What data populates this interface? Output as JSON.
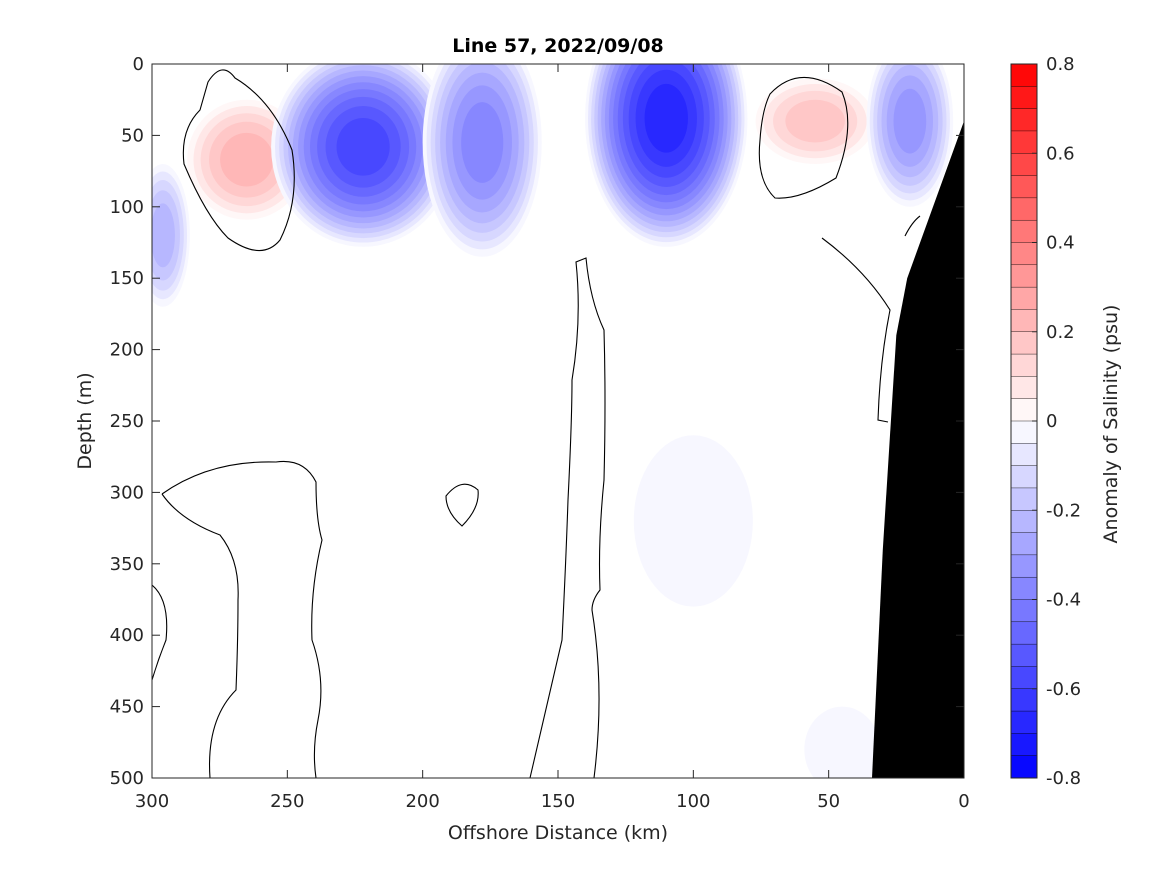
{
  "chart_data": {
    "type": "heatmap",
    "subtype": "filled-contour-section",
    "title": "Line 57, 2022/09/08",
    "xlabel": "Offshore Distance (km)",
    "ylabel": "Depth (m)",
    "colorbar_label": "Anomaly of Salinity (psu)",
    "xlim": [
      300,
      0
    ],
    "ylim": [
      500,
      0
    ],
    "x_reversed": true,
    "y_reversed": true,
    "x_ticks": [
      300,
      250,
      200,
      150,
      100,
      50,
      0
    ],
    "y_ticks": [
      0,
      50,
      100,
      150,
      200,
      250,
      300,
      350,
      400,
      450,
      500
    ],
    "colorbar_range": [
      -0.8,
      0.8
    ],
    "colorbar_step": 0.05,
    "colorbar_ticks": [
      0.8,
      0.6,
      0.4,
      0.2,
      0,
      -0.2,
      -0.4,
      -0.6,
      -0.8
    ],
    "colorbar_tick_labels": [
      "0.8",
      "0.6",
      "0.4",
      "0.2",
      "0",
      "-0.2",
      "-0.4",
      "-0.6",
      "-0.8"
    ],
    "colors": {
      "positive": "#ff0000",
      "negative": "#0000ff",
      "zero": "#ffffff",
      "bathymetry": "#000000"
    },
    "features": [
      {
        "sign": "positive",
        "x_center": 265,
        "depth_center": 67,
        "x_halfwidth": 22,
        "depth_halfwidth": 42,
        "peak": 0.25
      },
      {
        "sign": "positive",
        "x_center": 55,
        "depth_center": 40,
        "x_halfwidth": 22,
        "depth_halfwidth": 30,
        "peak": 0.2
      },
      {
        "sign": "negative",
        "x_center": 222,
        "depth_center": 58,
        "x_halfwidth": 34,
        "depth_halfwidth": 70,
        "peak": -0.62
      },
      {
        "sign": "negative",
        "x_center": 110,
        "depth_center": 38,
        "x_halfwidth": 30,
        "depth_halfwidth": 90,
        "peak": -0.68
      },
      {
        "sign": "negative",
        "x_center": 178,
        "depth_center": 55,
        "x_halfwidth": 22,
        "depth_halfwidth": 80,
        "peak": -0.38
      },
      {
        "sign": "negative",
        "x_center": 20,
        "depth_center": 40,
        "x_halfwidth": 16,
        "depth_halfwidth": 60,
        "peak": -0.35
      },
      {
        "sign": "negative",
        "x_center": 296,
        "depth_center": 120,
        "x_halfwidth": 10,
        "depth_halfwidth": 50,
        "peak": -0.25
      },
      {
        "sign": "negative",
        "x_center": 100,
        "depth_center": 320,
        "x_halfwidth": 22,
        "depth_halfwidth": 60,
        "peak": -0.06
      },
      {
        "sign": "negative",
        "x_center": 45,
        "depth_center": 480,
        "x_halfwidth": 14,
        "depth_halfwidth": 30,
        "peak": -0.06
      }
    ],
    "bathymetry": [
      {
        "x": 34,
        "depth": 500
      },
      {
        "x": 30,
        "depth": 340
      },
      {
        "x": 25,
        "depth": 190
      },
      {
        "x": 21,
        "depth": 150
      },
      {
        "x": 0,
        "depth": 40
      }
    ]
  }
}
